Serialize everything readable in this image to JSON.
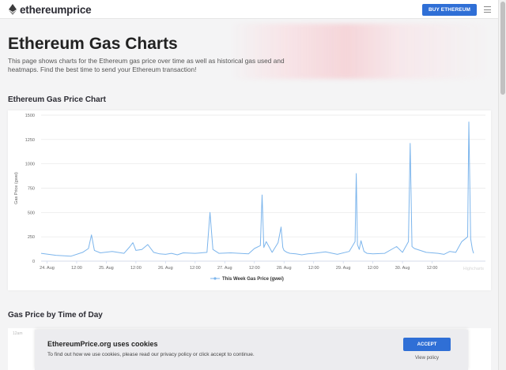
{
  "header": {
    "logo_text": "ethereumprice",
    "buy_label": "BUY ETHEREUM",
    "menu_icon": "hamburger-icon",
    "logo_icon": "ethereum-diamond-icon"
  },
  "hero": {
    "title": "Ethereum Gas Charts",
    "description": "This page shows charts for the Ethereum gas price over time as well as historical gas used and heatmaps. Find the best time to send your Ethereum transaction!"
  },
  "sections": {
    "gas_price_chart": "Ethereum Gas Price Chart",
    "time_of_day": "Gas Price by Time of Day"
  },
  "chart_data": {
    "type": "line",
    "ylabel": "Gas Price (gwei)",
    "ylim": [
      0,
      1500
    ],
    "yticks": [
      "1500",
      "1250",
      "1000",
      "750",
      "500",
      "250",
      "0"
    ],
    "xticks": [
      "24. Aug",
      "12:00",
      "25. Aug",
      "12:00",
      "26. Aug",
      "12:00",
      "27. Aug",
      "12:00",
      "28. Aug",
      "12:00",
      "29. Aug",
      "12:00",
      "30. Aug",
      "12:00"
    ],
    "legend_position": "bottom",
    "series": [
      {
        "name": "This Week Gas Price (gwei)",
        "color": "#7cb5ec",
        "x_days": [
          0,
          0.25,
          0.5,
          0.7,
          0.8,
          0.85,
          0.9,
          1.0,
          1.2,
          1.4,
          1.5,
          1.55,
          1.6,
          1.7,
          1.8,
          1.9,
          2.0,
          2.1,
          2.2,
          2.3,
          2.4,
          2.6,
          2.8,
          2.85,
          2.9,
          3.0,
          3.2,
          3.5,
          3.6,
          3.7,
          3.73,
          3.76,
          3.8,
          3.9,
          4.0,
          4.05,
          4.08,
          4.1,
          4.15,
          4.2,
          4.3,
          4.35,
          4.4,
          4.5,
          4.6,
          4.8,
          5.0,
          5.2,
          5.3,
          5.32,
          5.34,
          5.37,
          5.4,
          5.45,
          5.5,
          5.6,
          5.8,
          6.0,
          6.1,
          6.2,
          6.23,
          6.26,
          6.3,
          6.5,
          6.7,
          6.8,
          6.9,
          7.0,
          7.1,
          7.2,
          7.22,
          7.25,
          7.28,
          7.3
        ],
        "y_gwei": [
          80,
          60,
          50,
          90,
          130,
          270,
          110,
          85,
          100,
          80,
          150,
          190,
          110,
          120,
          170,
          90,
          75,
          70,
          80,
          65,
          85,
          80,
          90,
          500,
          120,
          80,
          85,
          75,
          130,
          160,
          680,
          140,
          200,
          90,
          190,
          350,
          140,
          110,
          90,
          80,
          75,
          70,
          65,
          75,
          80,
          95,
          70,
          100,
          200,
          900,
          170,
          120,
          210,
          100,
          80,
          75,
          80,
          150,
          90,
          200,
          1210,
          150,
          130,
          90,
          80,
          70,
          100,
          90,
          200,
          250,
          1430,
          230,
          120,
          80
        ]
      }
    ]
  },
  "watermark": "Highcharts",
  "heatmap": {
    "partial_label": "12am"
  },
  "cookie": {
    "title": "EthereumPrice.org uses cookies",
    "text": "To find out how we use cookies, please read our privacy policy or click accept to continue.",
    "accept_label": "ACCEPT",
    "policy_label": "View policy"
  }
}
